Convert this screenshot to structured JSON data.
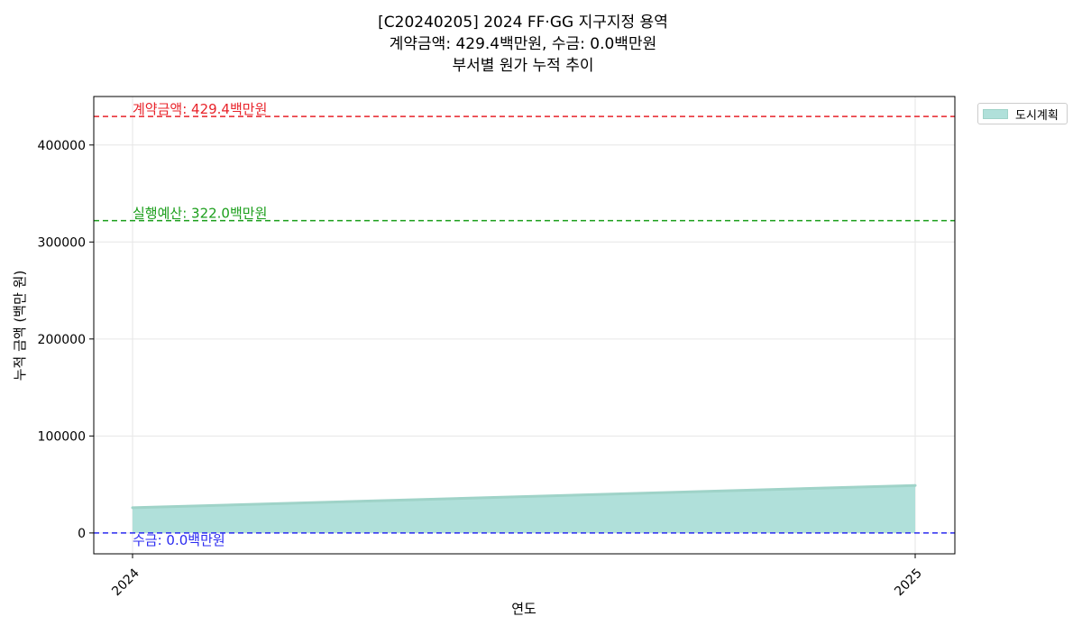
{
  "chart_data": {
    "type": "area",
    "title_lines": [
      "[C20240205] 2024 FF·GG 지구지정 용역",
      "계약금액: 429.4백만원, 수금: 0.0백만원",
      "부서별 원가 누적 추이"
    ],
    "xlabel": "연도",
    "ylabel": "누적 금액 (백만 원)",
    "x": [
      "2024",
      "2025"
    ],
    "series": [
      {
        "name": "도시계획",
        "values": [
          26000,
          49000
        ],
        "color": "#9fd3c8"
      }
    ],
    "ylim": [
      -21500,
      450000
    ],
    "yticks": [
      "0",
      "100000",
      "200000",
      "300000",
      "400000"
    ],
    "grid": true,
    "legend_position": "outside-top-right",
    "reference_lines": [
      {
        "value": 429400,
        "label": "계약금액: 429.4백만원",
        "color": "#e8232a"
      },
      {
        "value": 322000,
        "label": "실행예산: 322.0백만원",
        "color": "#1a9e1a"
      },
      {
        "value": 0,
        "label": "수금: 0.0백만원",
        "color": "#2b2bf0"
      }
    ]
  }
}
